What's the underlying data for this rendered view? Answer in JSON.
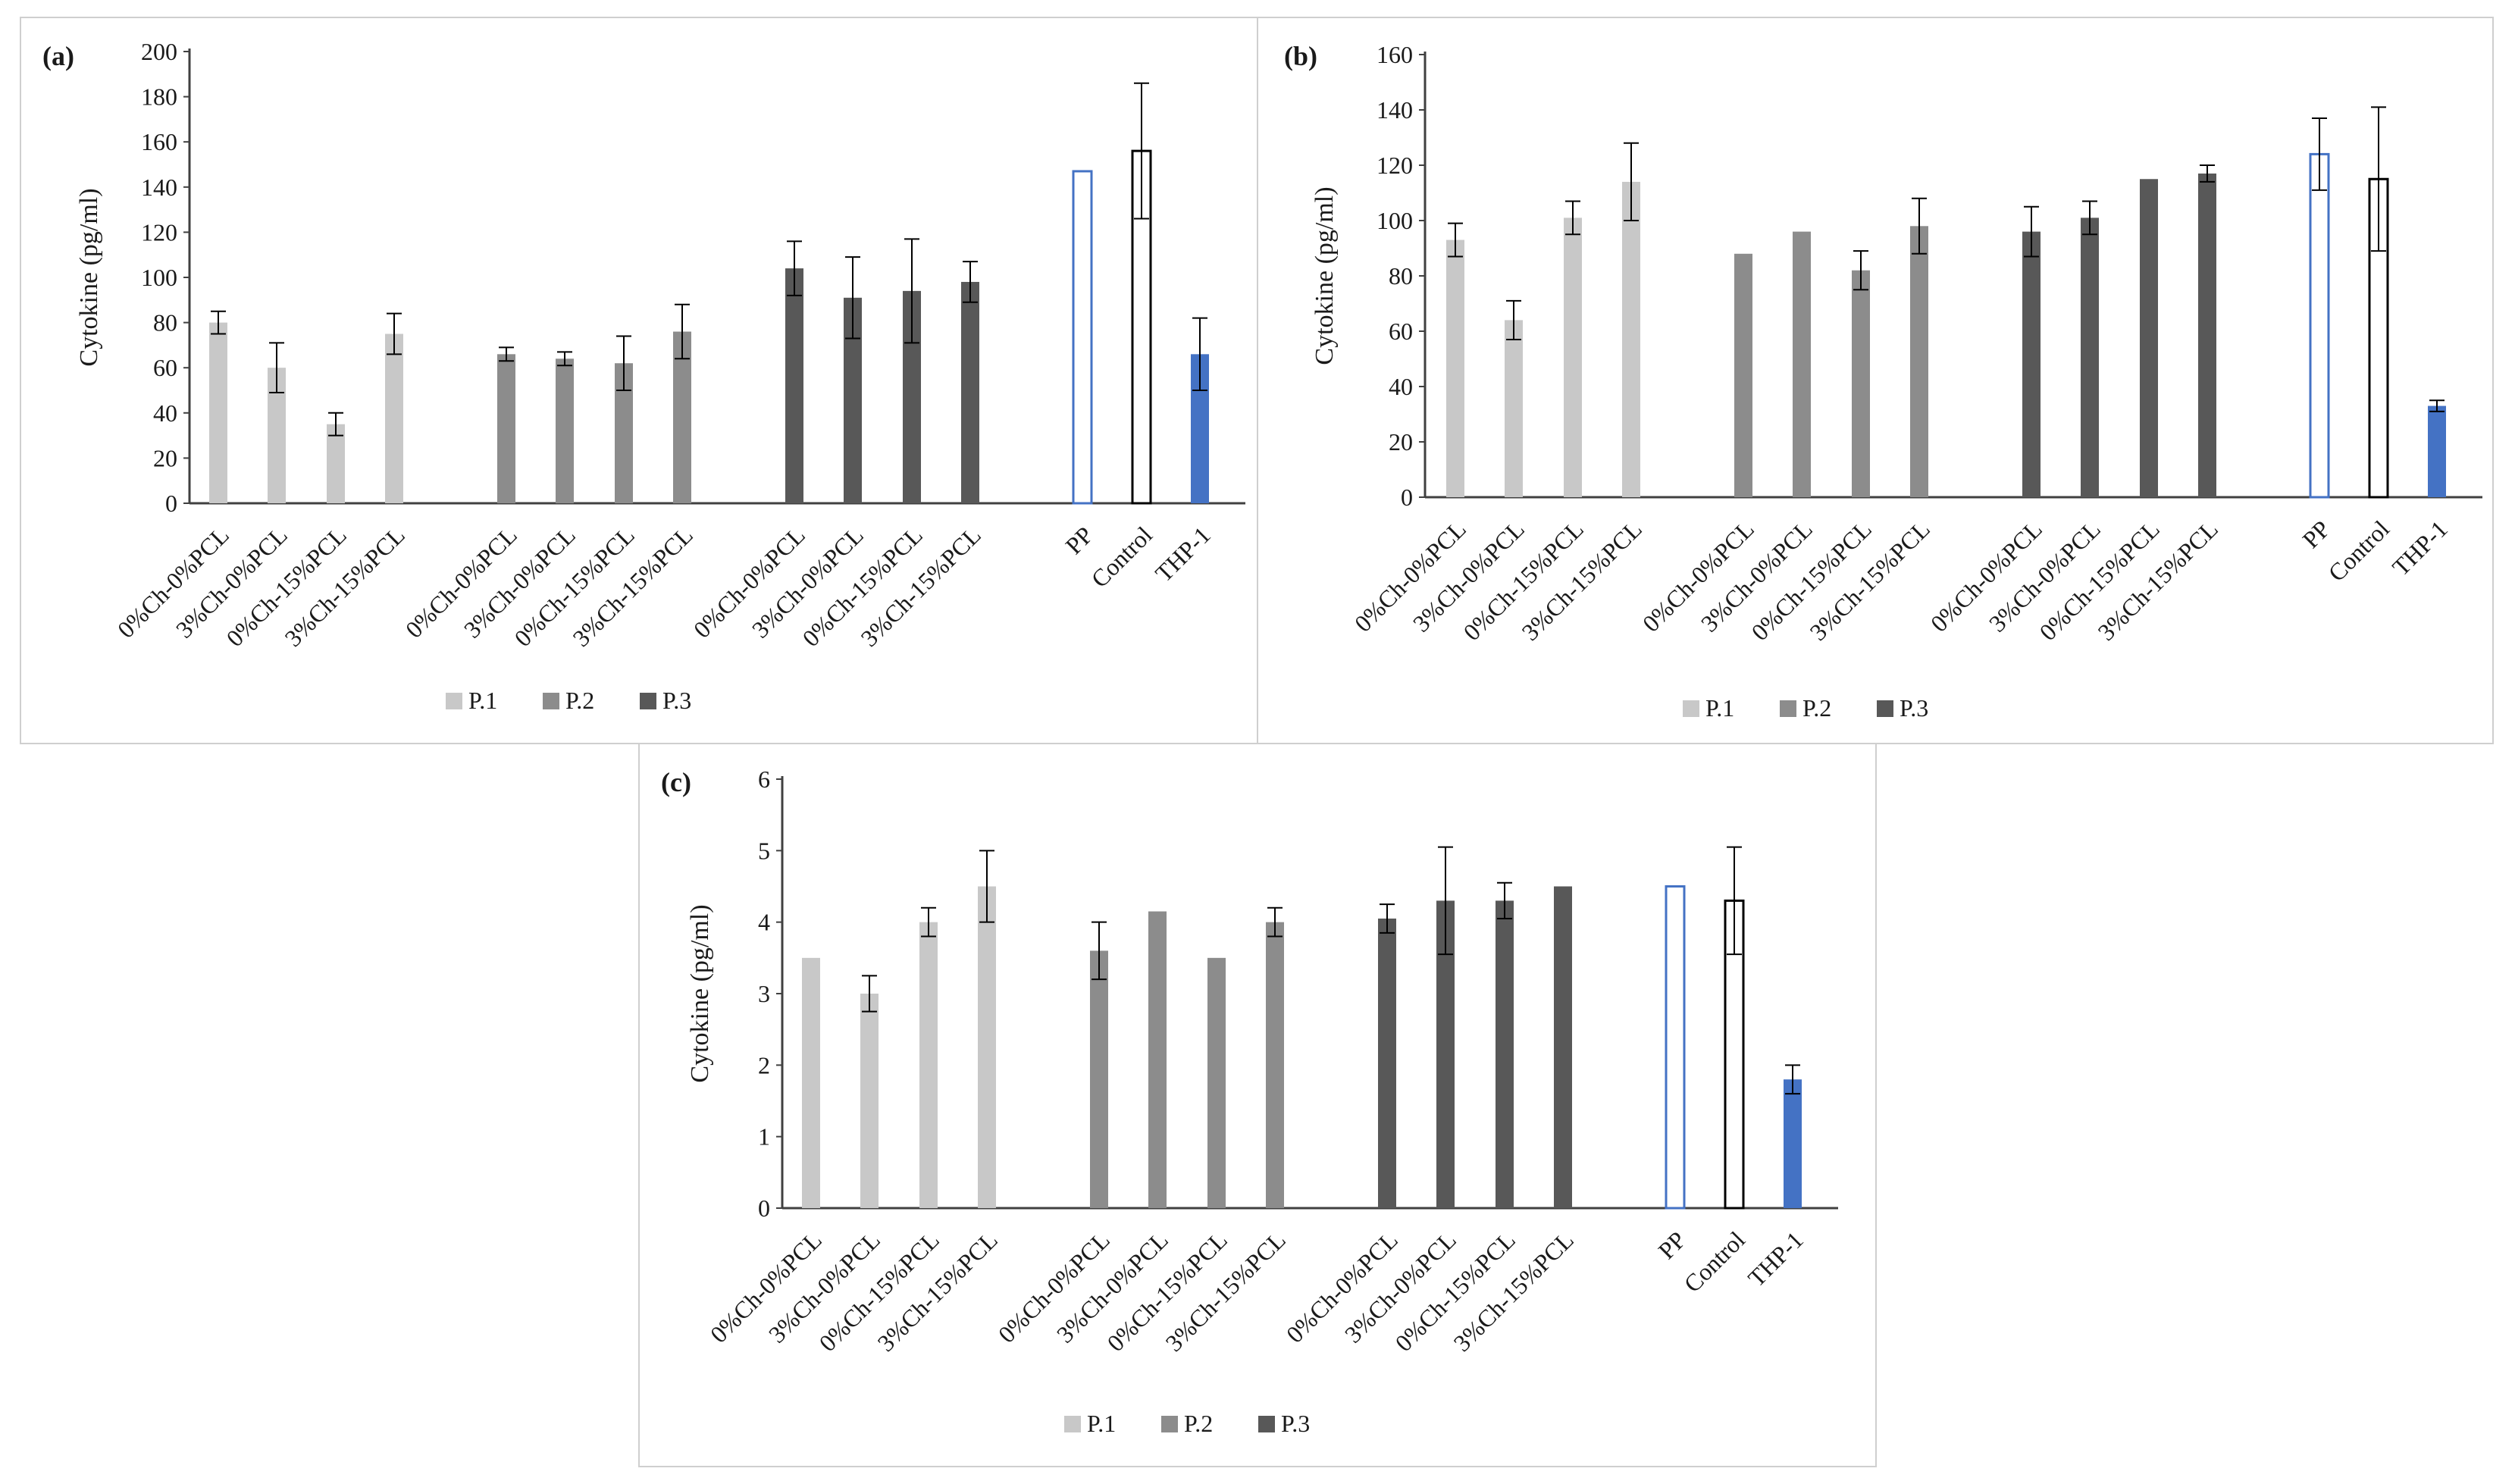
{
  "colors": {
    "p1": "#c8c8c8",
    "p2": "#8c8c8c",
    "p3": "#585858",
    "pp_edge": "#4472c4",
    "control_edge": "#000000",
    "thp1": "#4472c4",
    "axis": "#404040"
  },
  "chart_data": [
    {
      "type": "bar",
      "panel_label": "(a)",
      "ylabel": "Cytokine (pg/ml)",
      "ylim": [
        0,
        200
      ],
      "yticks": [
        "0",
        "20",
        "40",
        "60",
        "80",
        "100",
        "120",
        "140",
        "160",
        "180",
        "200"
      ],
      "legend": [
        "P.1",
        "P.2",
        "P.3"
      ],
      "categories": [
        "0%Ch-0%PCL",
        "3%Ch-0%PCL",
        "0%Ch-15%PCL",
        "3%Ch-15%PCL",
        "0%Ch-0%PCL",
        "3%Ch-0%PCL",
        "0%Ch-15%PCL",
        "3%Ch-15%PCL",
        "0%Ch-0%PCL",
        "3%Ch-0%PCL",
        "0%Ch-15%PCL",
        "3%Ch-15%PCL",
        "PP",
        "Control",
        "THP-1"
      ],
      "groups": [
        "P.1",
        "P.1",
        "P.1",
        "P.1",
        "P.2",
        "P.2",
        "P.2",
        "P.2",
        "P.3",
        "P.3",
        "P.3",
        "P.3",
        "PP",
        "Control",
        "THP-1"
      ],
      "values": [
        80,
        60,
        35,
        75,
        66,
        64,
        62,
        76,
        104,
        91,
        94,
        98,
        147,
        156,
        66
      ],
      "errors": [
        5,
        11,
        5,
        9,
        3,
        3,
        12,
        12,
        12,
        18,
        23,
        9,
        0,
        30,
        16
      ]
    },
    {
      "type": "bar",
      "panel_label": "(b)",
      "ylabel": "Cytokine (pg/ml)",
      "ylim": [
        0,
        160
      ],
      "yticks": [
        "0",
        "20",
        "40",
        "60",
        "80",
        "100",
        "120",
        "140",
        "160"
      ],
      "legend": [
        "P.1",
        "P.2",
        "P.3"
      ],
      "categories": [
        "0%Ch-0%PCL",
        "3%Ch-0%PCL",
        "0%Ch-15%PCL",
        "3%Ch-15%PCL",
        "0%Ch-0%PCL",
        "3%Ch-0%PCL",
        "0%Ch-15%PCL",
        "3%Ch-15%PCL",
        "0%Ch-0%PCL",
        "3%Ch-0%PCL",
        "0%Ch-15%PCL",
        "3%Ch-15%PCL",
        "PP",
        "Control",
        "THP-1"
      ],
      "groups": [
        "P.1",
        "P.1",
        "P.1",
        "P.1",
        "P.2",
        "P.2",
        "P.2",
        "P.2",
        "P.3",
        "P.3",
        "P.3",
        "P.3",
        "PP",
        "Control",
        "THP-1"
      ],
      "values": [
        93,
        64,
        101,
        114,
        88,
        96,
        82,
        98,
        96,
        101,
        115,
        117,
        124,
        115,
        33
      ],
      "errors": [
        6,
        7,
        6,
        14,
        0,
        0,
        7,
        10,
        9,
        6,
        0,
        3,
        13,
        26,
        2
      ]
    },
    {
      "type": "bar",
      "panel_label": "(c)",
      "ylabel": "Cytokine (pg/ml)",
      "ylim": [
        0,
        6
      ],
      "yticks": [
        "0",
        "1",
        "2",
        "3",
        "4",
        "5",
        "6"
      ],
      "legend": [
        "P.1",
        "P.2",
        "P.3"
      ],
      "categories": [
        "0%Ch-0%PCL",
        "3%Ch-0%PCL",
        "0%Ch-15%PCL",
        "3%Ch-15%PCL",
        "0%Ch-0%PCL",
        "3%Ch-0%PCL",
        "0%Ch-15%PCL",
        "3%Ch-15%PCL",
        "0%Ch-0%PCL",
        "3%Ch-0%PCL",
        "0%Ch-15%PCL",
        "3%Ch-15%PCL",
        "PP",
        "Control",
        "THP-1"
      ],
      "groups": [
        "P.1",
        "P.1",
        "P.1",
        "P.1",
        "P.2",
        "P.2",
        "P.2",
        "P.2",
        "P.3",
        "P.3",
        "P.3",
        "P.3",
        "PP",
        "Control",
        "THP-1"
      ],
      "values": [
        3.5,
        3.0,
        4.0,
        4.5,
        3.6,
        4.15,
        3.5,
        4.0,
        4.05,
        4.3,
        4.3,
        4.5,
        4.5,
        4.3,
        1.8
      ],
      "errors": [
        0,
        0.25,
        0.2,
        0.5,
        0.4,
        0,
        0,
        0.2,
        0.2,
        0.75,
        0.25,
        0,
        0,
        0.75,
        0.2
      ]
    }
  ]
}
